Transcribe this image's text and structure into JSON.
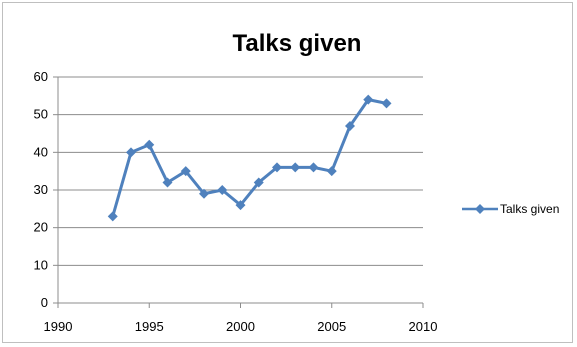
{
  "chart_data": {
    "type": "line",
    "title": "Talks given",
    "xlabel": "",
    "ylabel": "",
    "xlim": [
      1990,
      2010
    ],
    "ylim": [
      0,
      60
    ],
    "xticks": [
      1990,
      1995,
      2000,
      2005,
      2010
    ],
    "yticks": [
      0,
      10,
      20,
      30,
      40,
      50,
      60
    ],
    "grid": "horizontal",
    "legend_position": "right",
    "series": [
      {
        "name": "Talks given",
        "color": "#4f81bd",
        "marker": "diamond",
        "x": [
          1993,
          1994,
          1995,
          1996,
          1997,
          1998,
          1999,
          2000,
          2001,
          2002,
          2003,
          2004,
          2005,
          2006,
          2007,
          2008
        ],
        "y": [
          23,
          40,
          42,
          32,
          35,
          29,
          30,
          26,
          32,
          36,
          36,
          36,
          35,
          47,
          54,
          53
        ]
      }
    ]
  }
}
